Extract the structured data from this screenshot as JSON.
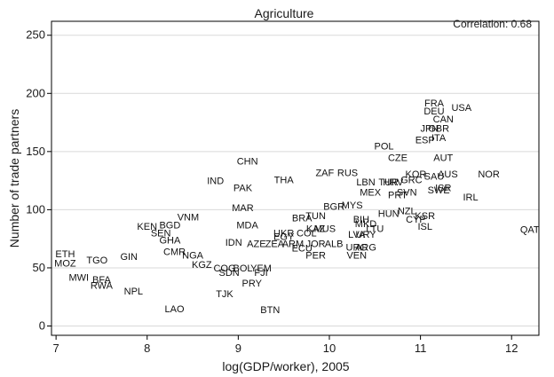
{
  "chart_data": {
    "type": "scatter",
    "title": "Agriculture",
    "annotation": "Correlation: 0.68",
    "xlabel": "log(GDP/worker), 2005",
    "ylabel": "Number of trade partners",
    "xlim": [
      6.95,
      12.3
    ],
    "ylim": [
      -8,
      262
    ],
    "xticks": [
      7,
      8,
      9,
      10,
      11,
      12
    ],
    "yticks": [
      0,
      50,
      100,
      150,
      200,
      250
    ],
    "grid": "horizontal",
    "colors": {
      "text": "#1a1a1a",
      "grid": "#d9d9d9",
      "axis": "#000000"
    },
    "points": [
      {
        "label": "FRA",
        "x": 11.15,
        "y": 192
      },
      {
        "label": "DEU",
        "x": 11.15,
        "y": 185
      },
      {
        "label": "USA",
        "x": 11.45,
        "y": 188
      },
      {
        "label": "CAN",
        "x": 11.25,
        "y": 178
      },
      {
        "label": "JPN",
        "x": 11.1,
        "y": 170
      },
      {
        "label": "GBR",
        "x": 11.2,
        "y": 170
      },
      {
        "label": "ESP",
        "x": 11.05,
        "y": 160
      },
      {
        "label": "ITA",
        "x": 11.2,
        "y": 162
      },
      {
        "label": "POL",
        "x": 10.6,
        "y": 155
      },
      {
        "label": "CZE",
        "x": 10.75,
        "y": 145
      },
      {
        "label": "AUT",
        "x": 11.25,
        "y": 145
      },
      {
        "label": "CHN",
        "x": 9.1,
        "y": 142
      },
      {
        "label": "ZAF",
        "x": 9.95,
        "y": 132
      },
      {
        "label": "RUS",
        "x": 10.2,
        "y": 132
      },
      {
        "label": "KOR",
        "x": 10.95,
        "y": 131
      },
      {
        "label": "GRC",
        "x": 10.9,
        "y": 126
      },
      {
        "label": "AUS",
        "x": 11.3,
        "y": 131
      },
      {
        "label": "NOR",
        "x": 11.75,
        "y": 131
      },
      {
        "label": "SAU",
        "x": 11.15,
        "y": 129
      },
      {
        "label": "IND",
        "x": 8.75,
        "y": 125
      },
      {
        "label": "THA",
        "x": 9.5,
        "y": 126
      },
      {
        "label": "LBN",
        "x": 10.4,
        "y": 124
      },
      {
        "label": "TUR",
        "x": 10.65,
        "y": 124
      },
      {
        "label": "HRV",
        "x": 10.7,
        "y": 124
      },
      {
        "label": "PAK",
        "x": 9.05,
        "y": 119
      },
      {
        "label": "MEX",
        "x": 10.45,
        "y": 115
      },
      {
        "label": "PRT",
        "x": 10.75,
        "y": 113
      },
      {
        "label": "SVN",
        "x": 10.85,
        "y": 115
      },
      {
        "label": "SWE",
        "x": 11.2,
        "y": 117
      },
      {
        "label": "ISR",
        "x": 11.25,
        "y": 119
      },
      {
        "label": "IRL",
        "x": 11.55,
        "y": 111
      },
      {
        "label": "MYS",
        "x": 10.25,
        "y": 104
      },
      {
        "label": "MAR",
        "x": 9.05,
        "y": 102
      },
      {
        "label": "BGR",
        "x": 10.05,
        "y": 103
      },
      {
        "label": "NZL",
        "x": 10.85,
        "y": 99
      },
      {
        "label": "HUN",
        "x": 10.65,
        "y": 97
      },
      {
        "label": "KSR",
        "x": 11.05,
        "y": 95
      },
      {
        "label": "CYP",
        "x": 10.95,
        "y": 92
      },
      {
        "label": "VNM",
        "x": 8.45,
        "y": 94
      },
      {
        "label": "TUN",
        "x": 9.85,
        "y": 95
      },
      {
        "label": "BRA",
        "x": 9.7,
        "y": 93
      },
      {
        "label": "BIH",
        "x": 10.35,
        "y": 92
      },
      {
        "label": "MKD",
        "x": 10.4,
        "y": 88
      },
      {
        "label": "KEN",
        "x": 8.0,
        "y": 86
      },
      {
        "label": "BGD",
        "x": 8.25,
        "y": 87
      },
      {
        "label": "MDA",
        "x": 9.1,
        "y": 87
      },
      {
        "label": "ISL",
        "x": 11.05,
        "y": 86
      },
      {
        "label": "KAZ",
        "x": 9.85,
        "y": 84
      },
      {
        "label": "MUS",
        "x": 9.95,
        "y": 84
      },
      {
        "label": "LTU",
        "x": 10.5,
        "y": 84
      },
      {
        "label": "QAT",
        "x": 12.2,
        "y": 83
      },
      {
        "label": "SEN",
        "x": 8.15,
        "y": 80
      },
      {
        "label": "UKR",
        "x": 9.5,
        "y": 80
      },
      {
        "label": "COL",
        "x": 9.75,
        "y": 80
      },
      {
        "label": "LVA",
        "x": 10.3,
        "y": 79
      },
      {
        "label": "URY",
        "x": 10.4,
        "y": 79
      },
      {
        "label": "EGY",
        "x": 9.5,
        "y": 77
      },
      {
        "label": "GHA",
        "x": 8.25,
        "y": 74
      },
      {
        "label": "IDN",
        "x": 8.95,
        "y": 72
      },
      {
        "label": "AZE",
        "x": 9.2,
        "y": 71
      },
      {
        "label": "ZEA",
        "x": 9.4,
        "y": 71
      },
      {
        "label": "ARM",
        "x": 9.6,
        "y": 71
      },
      {
        "label": "JOR",
        "x": 9.85,
        "y": 71
      },
      {
        "label": "ALB",
        "x": 10.05,
        "y": 71
      },
      {
        "label": "ECU",
        "x": 9.7,
        "y": 67
      },
      {
        "label": "URG",
        "x": 10.3,
        "y": 68
      },
      {
        "label": "ARG",
        "x": 10.4,
        "y": 68
      },
      {
        "label": "CMR",
        "x": 8.3,
        "y": 64
      },
      {
        "label": "NGA",
        "x": 8.5,
        "y": 61
      },
      {
        "label": "PER",
        "x": 9.85,
        "y": 61
      },
      {
        "label": "VEN",
        "x": 10.3,
        "y": 61
      },
      {
        "label": "ETH",
        "x": 7.1,
        "y": 62
      },
      {
        "label": "TGO",
        "x": 7.45,
        "y": 57
      },
      {
        "label": "GIN",
        "x": 7.8,
        "y": 60
      },
      {
        "label": "MOZ",
        "x": 7.1,
        "y": 54
      },
      {
        "label": "KGZ",
        "x": 8.6,
        "y": 53
      },
      {
        "label": "COG",
        "x": 8.85,
        "y": 50
      },
      {
        "label": "BOL",
        "x": 9.05,
        "y": 50
      },
      {
        "label": "YEM",
        "x": 9.25,
        "y": 50
      },
      {
        "label": "SDN",
        "x": 8.9,
        "y": 46
      },
      {
        "label": "FJI",
        "x": 9.25,
        "y": 46
      },
      {
        "label": "MWI",
        "x": 7.25,
        "y": 42
      },
      {
        "label": "BFA",
        "x": 7.5,
        "y": 40
      },
      {
        "label": "RWA",
        "x": 7.5,
        "y": 35
      },
      {
        "label": "PRY",
        "x": 9.15,
        "y": 37
      },
      {
        "label": "NPL",
        "x": 7.85,
        "y": 30
      },
      {
        "label": "TJK",
        "x": 8.85,
        "y": 28
      },
      {
        "label": "LAO",
        "x": 8.3,
        "y": 15
      },
      {
        "label": "BTN",
        "x": 9.35,
        "y": 14
      }
    ]
  }
}
